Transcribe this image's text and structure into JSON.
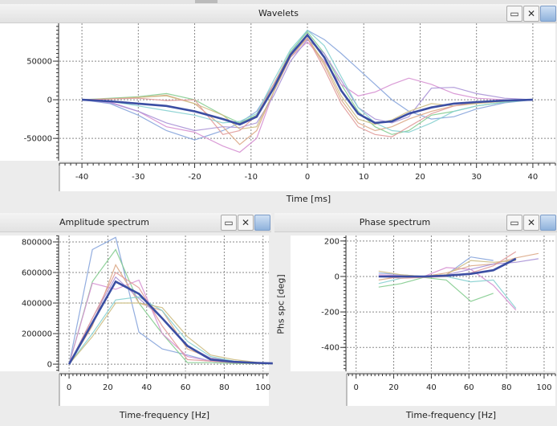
{
  "panels": {
    "wavelets": {
      "title": "Wavelets",
      "xlabel": "Time [ms]"
    },
    "amplitude": {
      "title": "Amplitude spectrum",
      "xlabel": "Time-frequency [Hz]"
    },
    "phase": {
      "title": "Phase spectrum",
      "xlabel": "Time-frequency [Hz]",
      "ylabel": "Phs spc [deg]"
    }
  },
  "window_buttons": {
    "maximize": "maximize-icon",
    "close": "close-icon",
    "export": "image-icon",
    "close_glyph": "✕"
  },
  "colors": {
    "mean": "#3b4ea3",
    "palette": [
      "#86a4dc",
      "#84cc8f",
      "#d690d2",
      "#dba886",
      "#a991d6",
      "#86d0d0",
      "#cdbd83",
      "#e09a9a"
    ]
  },
  "chart_data": [
    {
      "type": "line",
      "id": "wavelets",
      "title": "Wavelets",
      "xlabel": "Time [ms]",
      "ylabel": "",
      "xlim": [
        -44,
        44
      ],
      "ylim": [
        -79000,
        99000
      ],
      "grid": true,
      "xticks": [
        -40,
        -30,
        -20,
        -10,
        0,
        10,
        20,
        30,
        40
      ],
      "yticks": [
        -50000,
        0,
        50000
      ],
      "x": [
        -40,
        -35,
        -30,
        -25,
        -20,
        -15,
        -12,
        -9,
        -6,
        -3,
        0,
        3,
        6,
        9,
        12,
        15,
        18,
        22,
        26,
        30,
        35,
        40
      ],
      "mean": [
        0,
        -2000,
        -5000,
        -8000,
        -15000,
        -25000,
        -32000,
        -22000,
        15000,
        58000,
        84000,
        55000,
        12000,
        -18000,
        -30000,
        -28000,
        -18000,
        -10000,
        -5000,
        -3000,
        -1000,
        0
      ],
      "series": [
        [
          0,
          -5000,
          -20000,
          -40000,
          -52000,
          -40000,
          -30000,
          -15000,
          20000,
          60000,
          90000,
          78000,
          60000,
          40000,
          20000,
          0,
          -15000,
          -25000,
          -22000,
          -12000,
          -4000,
          0
        ],
        [
          0,
          2000,
          4000,
          8000,
          0,
          -20000,
          -30000,
          -20000,
          20000,
          62000,
          88000,
          60000,
          20000,
          -15000,
          -35000,
          -45000,
          -40000,
          -20000,
          -15000,
          -8000,
          -3000,
          0
        ],
        [
          0,
          -3000,
          -15000,
          -35000,
          -42000,
          -60000,
          -68000,
          -50000,
          10000,
          55000,
          75000,
          50000,
          20000,
          5000,
          10000,
          20000,
          28000,
          20000,
          8000,
          2000,
          0,
          0
        ],
        [
          0,
          1000,
          3000,
          6000,
          -5000,
          -35000,
          -58000,
          -40000,
          10000,
          55000,
          80000,
          45000,
          0,
          -30000,
          -40000,
          -35000,
          -25000,
          -15000,
          -8000,
          -4000,
          -1000,
          0
        ],
        [
          0,
          -4000,
          -15000,
          -30000,
          -40000,
          -35000,
          -36000,
          -30000,
          5000,
          50000,
          78000,
          60000,
          25000,
          -10000,
          -25000,
          -30000,
          -22000,
          15000,
          16000,
          8000,
          2000,
          0
        ],
        [
          0,
          -2000,
          -8000,
          -14000,
          -20000,
          -30000,
          -28000,
          -18000,
          25000,
          65000,
          90000,
          70000,
          30000,
          -10000,
          -30000,
          -40000,
          -42000,
          -30000,
          -15000,
          -8000,
          -3000,
          0
        ],
        [
          0,
          1000,
          3000,
          5000,
          -5000,
          -20000,
          -38000,
          -35000,
          10000,
          58000,
          80000,
          48000,
          5000,
          -25000,
          -32000,
          -26000,
          -15000,
          -5000,
          -8000,
          -5000,
          -2000,
          0
        ],
        [
          0,
          1000,
          2000,
          -1000,
          0,
          -45000,
          -40000,
          -20000,
          20000,
          60000,
          80000,
          40000,
          -5000,
          -35000,
          -45000,
          -48000,
          -35000,
          -18000,
          -8000,
          -3000,
          -1000,
          0
        ]
      ]
    },
    {
      "type": "line",
      "id": "amplitude",
      "title": "Amplitude spectrum",
      "xlabel": "Time-frequency [Hz]",
      "ylabel": "",
      "xlim": [
        -5,
        103
      ],
      "ylim": [
        -47000,
        842000
      ],
      "grid": true,
      "xticks": [
        0,
        20,
        40,
        60,
        80,
        100
      ],
      "yticks": [
        0,
        200000,
        400000,
        600000,
        800000
      ],
      "x": [
        0,
        12,
        24,
        36,
        48,
        61,
        73,
        85,
        97,
        105
      ],
      "mean": [
        0,
        270000,
        540000,
        460000,
        300000,
        120000,
        30000,
        15000,
        8000,
        5000
      ],
      "series": [
        [
          0,
          750000,
          830000,
          210000,
          100000,
          60000,
          20000,
          10000,
          5000,
          3000
        ],
        [
          0,
          540000,
          750000,
          400000,
          200000,
          10000,
          10000,
          5000,
          3000,
          2000
        ],
        [
          0,
          530000,
          490000,
          550000,
          200000,
          50000,
          20000,
          10000,
          5000,
          3000
        ],
        [
          0,
          250000,
          650000,
          400000,
          350000,
          100000,
          40000,
          20000,
          10000,
          5000
        ],
        [
          0,
          300000,
          570000,
          430000,
          300000,
          120000,
          40000,
          20000,
          10000,
          5000
        ],
        [
          0,
          200000,
          420000,
          440000,
          350000,
          150000,
          50000,
          20000,
          10000,
          5000
        ],
        [
          0,
          180000,
          400000,
          400000,
          370000,
          180000,
          60000,
          30000,
          12000,
          6000
        ],
        [
          0,
          300000,
          600000,
          500000,
          250000,
          30000,
          20000,
          10000,
          5000,
          3000
        ]
      ]
    },
    {
      "type": "line",
      "id": "phase",
      "title": "Phase spectrum",
      "xlabel": "Time-frequency [Hz]",
      "ylabel": "Phs spc [deg]",
      "xlim": [
        -5,
        106
      ],
      "ylim": [
        -535,
        231
      ],
      "grid": true,
      "xticks": [
        0,
        20,
        40,
        60,
        80,
        100
      ],
      "yticks": [
        -400,
        -200,
        0,
        200
      ],
      "x": [
        12,
        24,
        36,
        48,
        61,
        73,
        85,
        97
      ],
      "mean": [
        0,
        0,
        0,
        5,
        15,
        35,
        100,
        null
      ],
      "series": [
        [
          20,
          10,
          0,
          10,
          110,
          90,
          null,
          null
        ],
        [
          -60,
          -40,
          -5,
          -20,
          -140,
          -95,
          null,
          null
        ],
        [
          10,
          5,
          0,
          50,
          40,
          -50,
          -190,
          null
        ],
        [
          -20,
          0,
          0,
          20,
          60,
          70,
          105,
          130
        ],
        [
          0,
          5,
          0,
          10,
          40,
          70,
          80,
          100
        ],
        [
          -40,
          -10,
          0,
          0,
          -30,
          -20,
          -180,
          null
        ],
        [
          30,
          10,
          0,
          10,
          90,
          80,
          90,
          null
        ],
        [
          0,
          -10,
          -5,
          0,
          20,
          60,
          140,
          null
        ]
      ]
    }
  ]
}
